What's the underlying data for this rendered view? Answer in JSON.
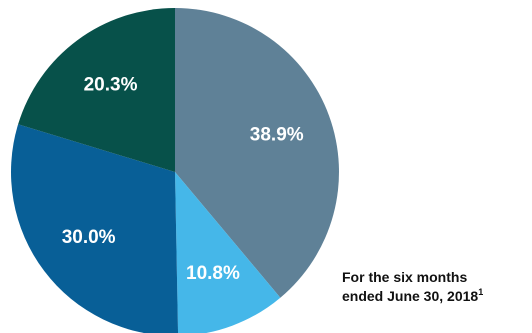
{
  "chart_data": {
    "type": "pie",
    "values": [
      38.9,
      10.8,
      30.0,
      20.3
    ],
    "labels": [
      "38.9%",
      "10.8%",
      "30.0%",
      "20.3%"
    ],
    "colors": [
      "#5f8197",
      "#45b7e9",
      "#085f97",
      "#07514a"
    ],
    "start_angle_deg": 0,
    "direction": "clockwise"
  },
  "caption": {
    "line1": "For the six months",
    "line2": "ended June 30, 2018",
    "footnote_marker": "1"
  }
}
